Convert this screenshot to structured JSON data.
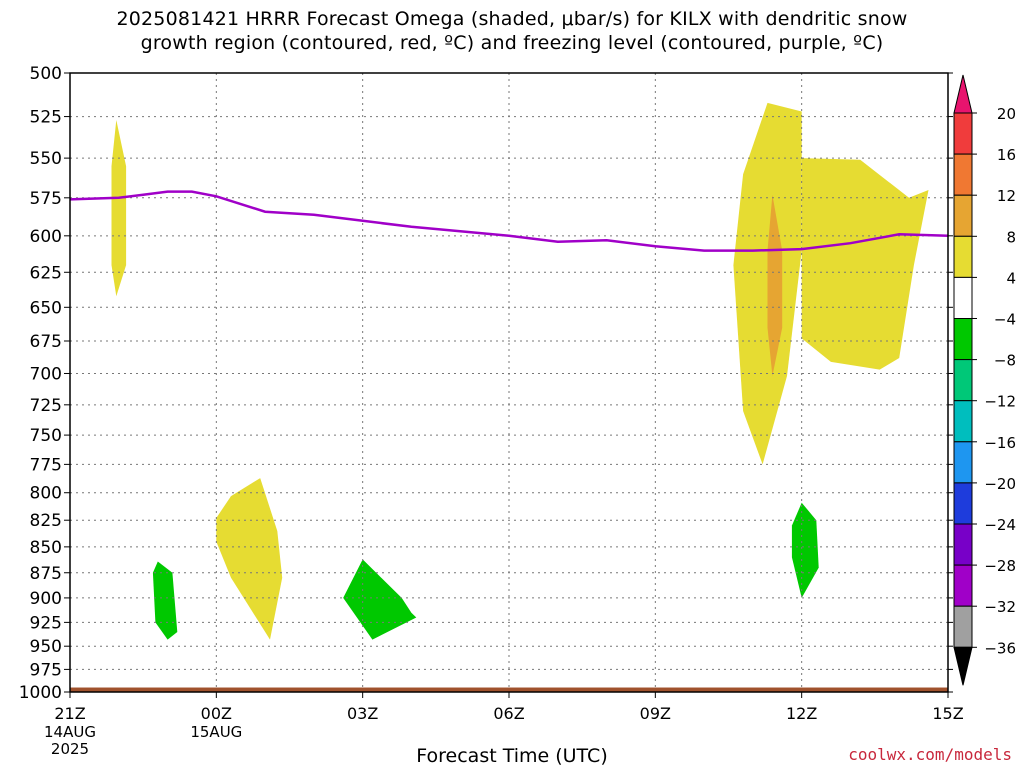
{
  "title_line1": "2025081421 HRRR Forecast Omega (shaded, μbar/s) for KILX with dendritic snow",
  "title_line2": "growth region (contoured, red, ºC) and freezing level (contoured, purple, ºC)",
  "credit": "coolwx.com/models",
  "chart_data": {
    "type": "contour",
    "title": "2025081421 HRRR Forecast Omega (shaded, μbar/s) for KILX with dendritic snow growth region (contoured, red, ºC) and freezing level (contoured, purple, ºC)",
    "xlabel": "Forecast Time (UTC)",
    "ylabel": "",
    "xlim_hours": [
      0,
      18
    ],
    "ylim": [
      1000,
      500
    ],
    "y_ticks": [
      500,
      525,
      550,
      575,
      600,
      625,
      650,
      675,
      700,
      725,
      750,
      775,
      800,
      825,
      850,
      875,
      900,
      925,
      950,
      975,
      1000
    ],
    "x_ticks": [
      {
        "hour": 0,
        "label": "21Z",
        "sub1": "14AUG",
        "sub2": "2025"
      },
      {
        "hour": 3,
        "label": "00Z",
        "sub1": "15AUG",
        "sub2": ""
      },
      {
        "hour": 6,
        "label": "03Z",
        "sub1": "",
        "sub2": ""
      },
      {
        "hour": 9,
        "label": "06Z",
        "sub1": "",
        "sub2": ""
      },
      {
        "hour": 12,
        "label": "09Z",
        "sub1": "",
        "sub2": ""
      },
      {
        "hour": 15,
        "label": "12Z",
        "sub1": "",
        "sub2": ""
      },
      {
        "hour": 18,
        "label": "15Z",
        "sub1": "",
        "sub2": ""
      }
    ],
    "grid": true,
    "colorbar": {
      "placement": "right",
      "labels": [
        "20",
        "16",
        "12",
        "8",
        "4",
        "−4",
        "−8",
        "−12",
        "−16",
        "−20",
        "−24",
        "−28",
        "−32",
        "−36"
      ],
      "colors": [
        "#e8146e",
        "#f03c3c",
        "#f07832",
        "#e6a532",
        "#e6dc32",
        "#ffffff",
        "#00c800",
        "#00c878",
        "#00bebe",
        "#1e96f0",
        "#1e3cdc",
        "#7800c8",
        "#a000c8",
        "#a0a0a0",
        "#000000"
      ]
    },
    "freezing_level": {
      "color": "#a000c8",
      "hours": [
        0,
        1,
        1.5,
        2,
        2.5,
        3,
        4,
        5,
        6,
        7,
        8,
        9,
        10,
        11,
        12,
        13,
        14,
        15,
        16,
        17,
        18
      ],
      "pressure": [
        576,
        575,
        573,
        571,
        571,
        574,
        584,
        586,
        590,
        594,
        597,
        600,
        604,
        603,
        607,
        610,
        610,
        609,
        605,
        599,
        600
      ]
    },
    "regions": [
      {
        "value_class": "4 to 8",
        "color": "#e6dc32",
        "points": [
          [
            0.95,
            527
          ],
          [
            1.15,
            555
          ],
          [
            1.15,
            620
          ],
          [
            0.95,
            642
          ],
          [
            0.85,
            620
          ],
          [
            0.85,
            555
          ]
        ]
      },
      {
        "value_class": "4 to 8",
        "color": "#e6dc32",
        "points": [
          [
            3.0,
            823
          ],
          [
            3.3,
            803
          ],
          [
            3.9,
            787
          ],
          [
            4.25,
            835
          ],
          [
            4.35,
            880
          ],
          [
            4.1,
            943
          ],
          [
            3.3,
            880
          ],
          [
            3.0,
            845
          ]
        ]
      },
      {
        "value_class": "4 to 8",
        "color": "#e6dc32",
        "points": [
          [
            13.8,
            560
          ],
          [
            14.3,
            517
          ],
          [
            15.0,
            522
          ],
          [
            15.0,
            610
          ],
          [
            14.7,
            702
          ],
          [
            14.2,
            775
          ],
          [
            13.8,
            730
          ],
          [
            13.6,
            620
          ]
        ]
      },
      {
        "value_class": "4 to 8",
        "color": "#e6dc32",
        "points": [
          [
            15.0,
            550
          ],
          [
            16.2,
            551
          ],
          [
            17.2,
            575
          ],
          [
            17.6,
            570
          ],
          [
            17.3,
            620
          ],
          [
            17.0,
            688
          ],
          [
            16.6,
            697
          ],
          [
            15.6,
            691
          ],
          [
            15.0,
            673
          ]
        ]
      },
      {
        "value_class": "8 to 12",
        "color": "#e6a532",
        "points": [
          [
            14.4,
            573
          ],
          [
            14.6,
            610
          ],
          [
            14.6,
            665
          ],
          [
            14.4,
            702
          ],
          [
            14.3,
            665
          ],
          [
            14.3,
            610
          ]
        ]
      },
      {
        "value_class": "-8 to -4",
        "color": "#00c800",
        "points": [
          [
            1.8,
            864
          ],
          [
            2.1,
            875
          ],
          [
            2.2,
            935
          ],
          [
            2.0,
            943
          ],
          [
            1.75,
            925
          ],
          [
            1.7,
            875
          ]
        ]
      },
      {
        "value_class": "-8 to -4",
        "color": "#00c800",
        "points": [
          [
            6.0,
            862
          ],
          [
            6.8,
            900
          ],
          [
            7.0,
            915
          ],
          [
            7.1,
            920
          ],
          [
            6.2,
            943
          ],
          [
            5.6,
            900
          ]
        ]
      },
      {
        "value_class": "-8 to -4",
        "color": "#00c800",
        "points": [
          [
            15.0,
            809
          ],
          [
            15.3,
            825
          ],
          [
            15.35,
            870
          ],
          [
            15.0,
            900
          ],
          [
            14.8,
            860
          ],
          [
            14.8,
            830
          ]
        ]
      }
    ],
    "surface": {
      "color": "#a0522d",
      "pressure_top": 995
    }
  }
}
